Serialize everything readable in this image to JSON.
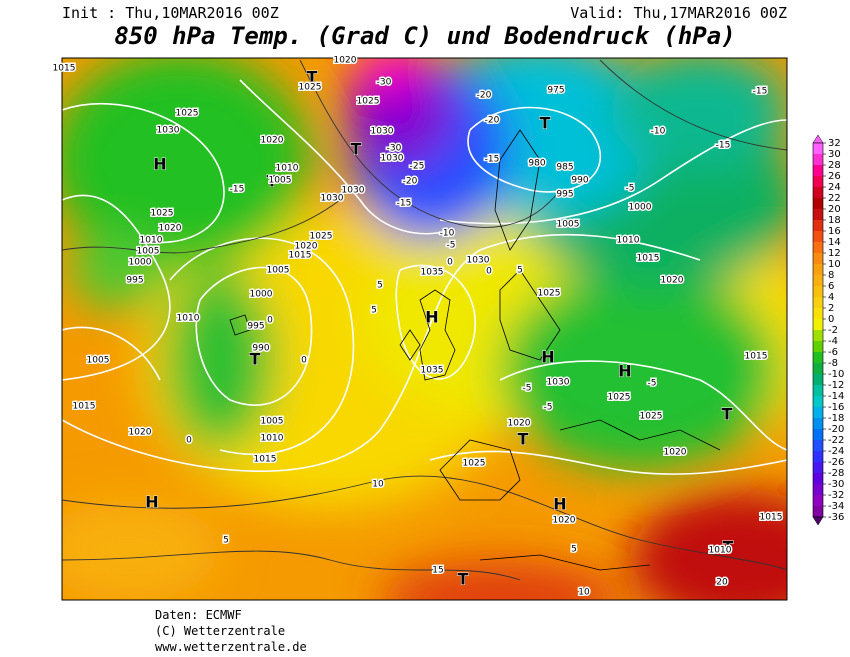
{
  "header": {
    "init": "Init : Thu,10MAR2016 00Z",
    "valid": "Valid: Thu,17MAR2016 00Z",
    "title": "850 hPa Temp. (Grad C) und Bodendruck (hPa)"
  },
  "legend": {
    "levels": [
      32,
      30,
      28,
      26,
      24,
      22,
      20,
      18,
      16,
      14,
      12,
      10,
      8,
      6,
      4,
      2,
      0,
      -2,
      -4,
      -6,
      -8,
      -10,
      -12,
      -14,
      -16,
      -18,
      -20,
      -22,
      -24,
      -26,
      -28,
      -30,
      -32,
      -34,
      -36
    ],
    "colors": [
      "#ff60ff",
      "#ff30d0",
      "#ff0090",
      "#f00050",
      "#d00020",
      "#b00000",
      "#c81010",
      "#e03010",
      "#f05010",
      "#f87010",
      "#f88c10",
      "#f8a010",
      "#f8b010",
      "#f8c010",
      "#f8d010",
      "#f8e008",
      "#f0f000",
      "#a0e000",
      "#60d000",
      "#20c020",
      "#10b040",
      "#00b070",
      "#00c0a0",
      "#00c8c8",
      "#00b0e8",
      "#0090f0",
      "#0070f8",
      "#2050ff",
      "#3030ff",
      "#4818f0",
      "#6000e0",
      "#7800d0",
      "#9000c0",
      "#8000a0",
      "#500070"
    ]
  },
  "map": {
    "labels": [
      "H",
      "H",
      "H",
      "H",
      "H",
      "H",
      "T",
      "T",
      "T",
      "T",
      "T",
      "T",
      "T",
      "T",
      "T",
      "1015",
      "1025",
      "1030",
      "1010",
      "1005",
      "1030",
      "-15",
      "1025",
      "1020",
      "1010",
      "1005",
      "1000",
      "995",
      "1010",
      "1005",
      "1015",
      "1020",
      "1005",
      "1010",
      "1015",
      "995",
      "990",
      "1000",
      "1005",
      "1035",
      "1030",
      "1035",
      "1025",
      "1030",
      "1025",
      "1025",
      "1020",
      "1020",
      "1025",
      "1020",
      "1015",
      "1010",
      "1015",
      "1020",
      "1005",
      "1000",
      "995",
      "990",
      "985",
      "980",
      "975",
      "-10",
      "-15",
      "-15",
      "-5",
      "-20",
      "-20",
      "-15",
      "-25",
      "-30",
      "-20",
      "-15",
      "-30",
      "1025",
      "1030",
      "1030",
      "1030",
      "1020",
      "1025",
      "1020",
      "-10",
      "-5",
      "1025",
      "1020",
      "1015",
      "0",
      "5",
      "5",
      "0",
      "0",
      "0",
      "10",
      "5",
      "5",
      "10",
      "15",
      "20",
      "1010",
      "1015",
      "-5",
      "-5",
      "-5",
      "5",
      "0"
    ]
  },
  "footer": {
    "lines": [
      "Daten: ECMWF",
      "(C) Wetterzentrale",
      "www.wetterzentrale.de"
    ]
  }
}
